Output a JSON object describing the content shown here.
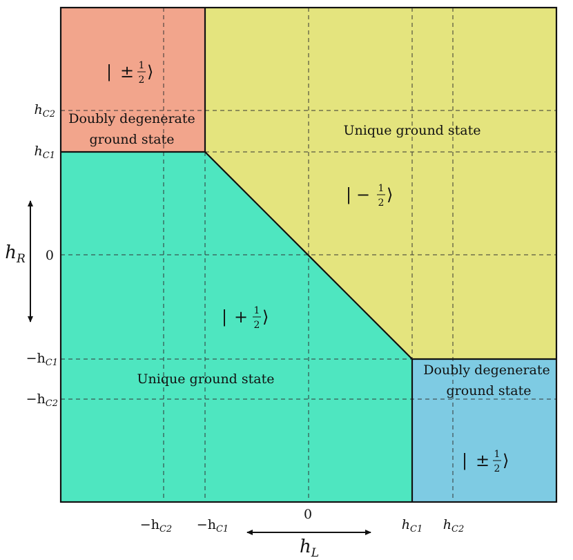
{
  "colors": {
    "top_left": "#f2a58c",
    "top_right": "#e4e47e",
    "bottom_left": "#4ee6c0",
    "bottom_right": "#7ecbe3",
    "lines": "#111111"
  },
  "regions": {
    "top_left": {
      "line1": "Doubly degenerate",
      "line2": "ground state",
      "ket_sign": "±"
    },
    "top_right": {
      "label": "Unique ground state",
      "ket_sign": "−"
    },
    "bottom_left": {
      "label": "Unique ground state",
      "ket_sign": "+"
    },
    "bottom_right": {
      "line1": "Doubly degenerate",
      "line2": "ground state",
      "ket_sign": "±"
    }
  },
  "ket": {
    "num": "1",
    "den": "2"
  },
  "axes": {
    "x_title": "h",
    "x_title_sub": "L",
    "y_title": "h",
    "y_title_sub": "R",
    "x_ticks": [
      {
        "prefix": "−h",
        "sub": "C2"
      },
      {
        "prefix": "−h",
        "sub": "C1"
      },
      {
        "prefix": "0",
        "sub": ""
      },
      {
        "prefix": "h",
        "sub": "C1"
      },
      {
        "prefix": "h",
        "sub": "C2"
      }
    ],
    "y_ticks": [
      {
        "prefix": "h",
        "sub": "C2"
      },
      {
        "prefix": "h",
        "sub": "C1"
      },
      {
        "prefix": "0",
        "sub": ""
      },
      {
        "prefix": "−h",
        "sub": "C1"
      },
      {
        "prefix": "−h",
        "sub": "C2"
      }
    ]
  }
}
